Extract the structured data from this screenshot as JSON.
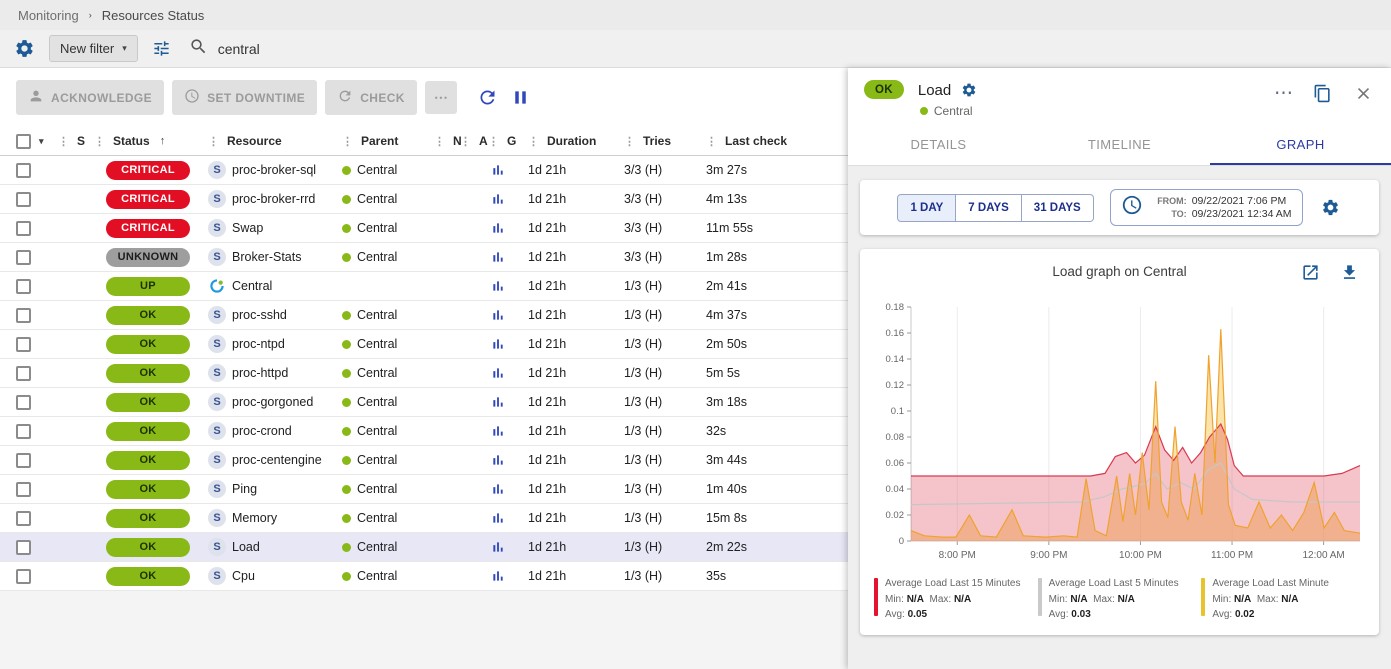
{
  "breadcrumb": {
    "items": [
      "Monitoring",
      "Resources Status"
    ]
  },
  "filter_bar": {
    "new_filter_label": "New filter",
    "search_value": "central"
  },
  "toolbar": {
    "acknowledge_label": "ACKNOWLEDGE",
    "set_downtime_label": "SET DOWNTIME",
    "check_label": "CHECK",
    "more_label": "⋯"
  },
  "table": {
    "headers": {
      "s": "S",
      "status": "Status",
      "sort_indicator": "↑",
      "resource": "Resource",
      "parent": "Parent",
      "n": "N",
      "a": "A",
      "g": "G",
      "duration": "Duration",
      "tries": "Tries",
      "last_check": "Last check"
    },
    "rows": [
      {
        "severity": "critical",
        "status": "CRITICAL",
        "icon": "S",
        "resource": "proc-broker-sql",
        "parent": "Central",
        "duration": "1d 21h",
        "tries": "3/3 (H)",
        "last_check": "3m 27s"
      },
      {
        "severity": "critical",
        "status": "CRITICAL",
        "icon": "S",
        "resource": "proc-broker-rrd",
        "parent": "Central",
        "duration": "1d 21h",
        "tries": "3/3 (H)",
        "last_check": "4m 13s"
      },
      {
        "severity": "critical",
        "status": "CRITICAL",
        "icon": "S",
        "resource": "Swap",
        "parent": "Central",
        "duration": "1d 21h",
        "tries": "3/3 (H)",
        "last_check": "11m 55s"
      },
      {
        "severity": "unknown",
        "status": "UNKNOWN",
        "icon": "S",
        "resource": "Broker-Stats",
        "parent": "Central",
        "duration": "1d 21h",
        "tries": "3/3 (H)",
        "last_check": "1m 28s"
      },
      {
        "severity": "ok",
        "status": "UP",
        "icon": "host",
        "resource": "Central",
        "parent": "",
        "duration": "1d 21h",
        "tries": "1/3 (H)",
        "last_check": "2m 41s"
      },
      {
        "severity": "ok",
        "status": "OK",
        "icon": "S",
        "resource": "proc-sshd",
        "parent": "Central",
        "duration": "1d 21h",
        "tries": "1/3 (H)",
        "last_check": "4m 37s"
      },
      {
        "severity": "ok",
        "status": "OK",
        "icon": "S",
        "resource": "proc-ntpd",
        "parent": "Central",
        "duration": "1d 21h",
        "tries": "1/3 (H)",
        "last_check": "2m 50s"
      },
      {
        "severity": "ok",
        "status": "OK",
        "icon": "S",
        "resource": "proc-httpd",
        "parent": "Central",
        "duration": "1d 21h",
        "tries": "1/3 (H)",
        "last_check": "5m 5s"
      },
      {
        "severity": "ok",
        "status": "OK",
        "icon": "S",
        "resource": "proc-gorgoned",
        "parent": "Central",
        "duration": "1d 21h",
        "tries": "1/3 (H)",
        "last_check": "3m 18s"
      },
      {
        "severity": "ok",
        "status": "OK",
        "icon": "S",
        "resource": "proc-crond",
        "parent": "Central",
        "duration": "1d 21h",
        "tries": "1/3 (H)",
        "last_check": "32s"
      },
      {
        "severity": "ok",
        "status": "OK",
        "icon": "S",
        "resource": "proc-centengine",
        "parent": "Central",
        "duration": "1d 21h",
        "tries": "1/3 (H)",
        "last_check": "3m 44s"
      },
      {
        "severity": "ok",
        "status": "OK",
        "icon": "S",
        "resource": "Ping",
        "parent": "Central",
        "duration": "1d 21h",
        "tries": "1/3 (H)",
        "last_check": "1m 40s"
      },
      {
        "severity": "ok",
        "status": "OK",
        "icon": "S",
        "resource": "Memory",
        "parent": "Central",
        "duration": "1d 21h",
        "tries": "1/3 (H)",
        "last_check": "15m 8s"
      },
      {
        "severity": "ok",
        "status": "OK",
        "icon": "S",
        "resource": "Load",
        "parent": "Central",
        "duration": "1d 21h",
        "tries": "1/3 (H)",
        "last_check": "2m 22s",
        "selected": true
      },
      {
        "severity": "ok",
        "status": "OK",
        "icon": "S",
        "resource": "Cpu",
        "parent": "Central",
        "duration": "1d 21h",
        "tries": "1/3 (H)",
        "last_check": "35s"
      }
    ]
  },
  "panel": {
    "status_chip": "OK",
    "title": "Load",
    "host": "Central",
    "more_label": "⋯",
    "tabs": [
      {
        "label": "DETAILS"
      },
      {
        "label": "TIMELINE"
      },
      {
        "label": "GRAPH"
      }
    ],
    "time_buttons": [
      {
        "label": "1 DAY"
      },
      {
        "label": "7 DAYS"
      },
      {
        "label": "31 DAYS"
      }
    ],
    "range": {
      "from_label": "FROM:",
      "from_value": "09/22/2021 7:06 PM",
      "to_label": "TO:",
      "to_value": "09/23/2021 12:34 AM"
    }
  },
  "chart_data": {
    "type": "area",
    "title": "Load graph on Central",
    "ylim": [
      0,
      0.18
    ],
    "yticks": [
      0,
      0.02,
      0.04,
      0.06,
      0.08,
      0.1,
      0.12,
      0.14,
      0.16,
      0.18
    ],
    "xticks": [
      {
        "label": "8:00 PM",
        "f": 0.103
      },
      {
        "label": "9:00 PM",
        "f": 0.307
      },
      {
        "label": "10:00 PM",
        "f": 0.511
      },
      {
        "label": "11:00 PM",
        "f": 0.715
      },
      {
        "label": "12:00 AM",
        "f": 0.919
      }
    ],
    "legend_labels": {
      "min": "Min:",
      "max": "Max:",
      "avg": "Avg:"
    },
    "series": [
      {
        "name": "Average Load Last 15 Minutes",
        "color": "#d93a4e",
        "legend_color": "#e4132f",
        "fill": "rgba(222,60,80,0.3)",
        "z_fill": 2,
        "z_line": 1,
        "min": "N/A",
        "max": "N/A",
        "avg": "0.05",
        "points": [
          [
            0,
            0.05
          ],
          [
            0.4,
            0.05
          ],
          [
            0.432,
            0.052
          ],
          [
            0.455,
            0.065
          ],
          [
            0.48,
            0.068
          ],
          [
            0.5,
            0.06
          ],
          [
            0.52,
            0.066
          ],
          [
            0.545,
            0.088
          ],
          [
            0.565,
            0.07
          ],
          [
            0.585,
            0.062
          ],
          [
            0.605,
            0.072
          ],
          [
            0.625,
            0.06
          ],
          [
            0.645,
            0.068
          ],
          [
            0.665,
            0.08
          ],
          [
            0.69,
            0.09
          ],
          [
            0.705,
            0.078
          ],
          [
            0.72,
            0.058
          ],
          [
            0.74,
            0.05
          ],
          [
            0.8,
            0.05
          ],
          [
            0.86,
            0.05
          ],
          [
            0.92,
            0.05
          ],
          [
            0.96,
            0.052
          ],
          [
            1,
            0.058
          ]
        ]
      },
      {
        "name": "Average Load Last 5 Minutes",
        "color": "#c6c6c8",
        "legend_color": "#c9c9cb",
        "fill": "none",
        "z_fill": 0,
        "z_line": 0,
        "min": "N/A",
        "max": "N/A",
        "avg": "0.03",
        "points": [
          [
            0,
            0.028
          ],
          [
            0.38,
            0.03
          ],
          [
            0.43,
            0.034
          ],
          [
            0.47,
            0.04
          ],
          [
            0.52,
            0.044
          ],
          [
            0.545,
            0.052
          ],
          [
            0.57,
            0.04
          ],
          [
            0.6,
            0.045
          ],
          [
            0.63,
            0.04
          ],
          [
            0.663,
            0.055
          ],
          [
            0.69,
            0.06
          ],
          [
            0.72,
            0.04
          ],
          [
            0.76,
            0.032
          ],
          [
            0.85,
            0.03
          ],
          [
            0.93,
            0.03
          ],
          [
            1,
            0.03
          ]
        ]
      },
      {
        "name": "Average Load Last Minute",
        "color": "#efa22e",
        "legend_color": "#e7c32e",
        "fill": "rgba(247,205,100,0.55)",
        "z_fill": 1,
        "z_line": 2,
        "min": "N/A",
        "max": "N/A",
        "avg": "0.02",
        "points": [
          [
            0,
            0.008
          ],
          [
            0.03,
            0.004
          ],
          [
            0.07,
            0.003
          ],
          [
            0.1,
            0.003
          ],
          [
            0.13,
            0.02
          ],
          [
            0.155,
            0.004
          ],
          [
            0.19,
            0.003
          ],
          [
            0.225,
            0.024
          ],
          [
            0.25,
            0.004
          ],
          [
            0.3,
            0.003
          ],
          [
            0.34,
            0.004
          ],
          [
            0.37,
            0.003
          ],
          [
            0.39,
            0.048
          ],
          [
            0.41,
            0.008
          ],
          [
            0.435,
            0.004
          ],
          [
            0.458,
            0.05
          ],
          [
            0.472,
            0.015
          ],
          [
            0.487,
            0.052
          ],
          [
            0.5,
            0.02
          ],
          [
            0.515,
            0.068
          ],
          [
            0.53,
            0.024
          ],
          [
            0.545,
            0.123
          ],
          [
            0.558,
            0.03
          ],
          [
            0.572,
            0.018
          ],
          [
            0.588,
            0.088
          ],
          [
            0.602,
            0.03
          ],
          [
            0.617,
            0.016
          ],
          [
            0.632,
            0.052
          ],
          [
            0.648,
            0.02
          ],
          [
            0.663,
            0.143
          ],
          [
            0.677,
            0.06
          ],
          [
            0.69,
            0.163
          ],
          [
            0.707,
            0.028
          ],
          [
            0.722,
            0.012
          ],
          [
            0.75,
            0.01
          ],
          [
            0.775,
            0.03
          ],
          [
            0.8,
            0.01
          ],
          [
            0.825,
            0.02
          ],
          [
            0.85,
            0.008
          ],
          [
            0.875,
            0.022
          ],
          [
            0.898,
            0.045
          ],
          [
            0.92,
            0.01
          ],
          [
            0.943,
            0.022
          ],
          [
            0.965,
            0.008
          ],
          [
            1,
            0.006
          ]
        ]
      }
    ]
  },
  "colors": {
    "ok_green": "#88b917",
    "critical_red": "#e20e24",
    "unknown_gray": "#9e9e9e",
    "accent_blue": "#1d5a96",
    "indigo": "#2d3aa3",
    "selected_row": "#e7e7f6"
  }
}
